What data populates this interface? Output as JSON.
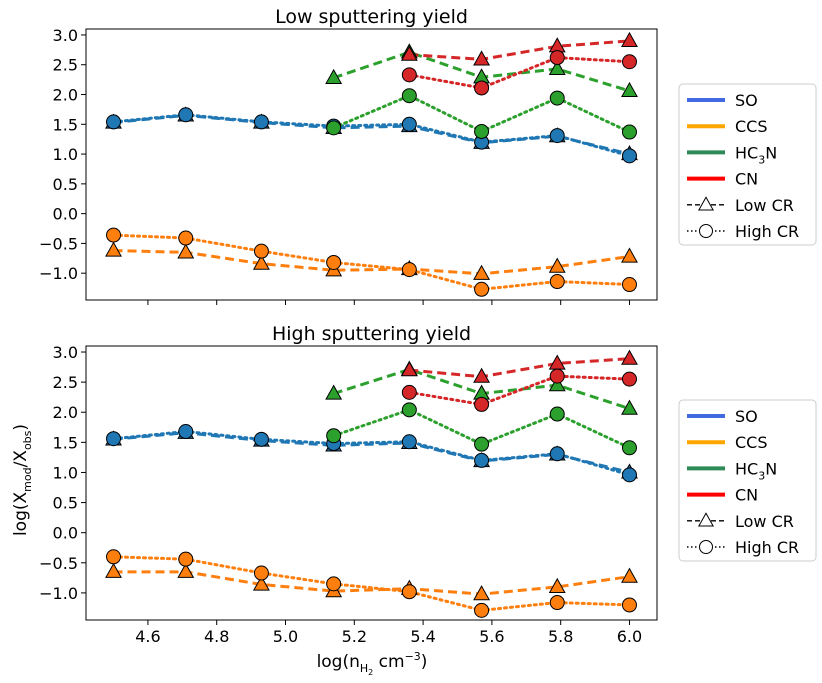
{
  "chart_data": [
    {
      "type": "line",
      "title": "Low sputtering yield",
      "xlabel": "",
      "ylabel": "",
      "xlim": [
        4.42,
        6.08
      ],
      "ylim": [
        -1.45,
        3.1
      ],
      "xticks": [
        4.6,
        4.8,
        5.0,
        5.2,
        5.4,
        5.6,
        5.8,
        6.0
      ],
      "xtick_labels_shown": false,
      "yticks": [
        "3.0",
        "2.5",
        "2.0",
        "1.5",
        "1.0",
        "0.5",
        "0.0",
        "−0.5",
        "−1.0"
      ],
      "x": [
        4.5,
        4.71,
        4.93,
        5.14,
        5.36,
        5.57,
        5.79,
        6.0
      ],
      "series": [
        {
          "molecule": "SO",
          "cr": "Low CR",
          "color": "#1f77b4",
          "values": [
            1.53,
            1.65,
            1.53,
            1.44,
            1.47,
            1.19,
            1.3,
            1.0
          ]
        },
        {
          "molecule": "SO",
          "cr": "High CR",
          "color": "#1f77b4",
          "values": [
            1.54,
            1.66,
            1.54,
            1.47,
            1.5,
            1.2,
            1.31,
            0.97
          ]
        },
        {
          "molecule": "CCS",
          "cr": "Low CR",
          "color": "#ff7f0e",
          "values": [
            -0.62,
            -0.65,
            -0.84,
            -0.95,
            -0.93,
            -1.01,
            -0.89,
            -0.72
          ]
        },
        {
          "molecule": "CCS",
          "cr": "High CR",
          "color": "#ff7f0e",
          "values": [
            -0.36,
            -0.41,
            -0.63,
            -0.82,
            -0.94,
            -1.27,
            -1.14,
            -1.19
          ]
        },
        {
          "molecule": "HC3N",
          "cr": "Low CR",
          "color": "#2ca02c",
          "x": [
            5.14,
            5.36,
            5.57,
            5.79,
            6.0
          ],
          "values": [
            2.28,
            2.71,
            2.29,
            2.43,
            2.06
          ]
        },
        {
          "molecule": "HC3N",
          "cr": "High CR",
          "color": "#2ca02c",
          "x": [
            5.14,
            5.36,
            5.57,
            5.79,
            6.0
          ],
          "values": [
            1.44,
            1.98,
            1.38,
            1.94,
            1.37
          ]
        },
        {
          "molecule": "CN",
          "cr": "Low CR",
          "color": "#d62728",
          "x": [
            5.36,
            5.57,
            5.79,
            6.0
          ],
          "values": [
            2.67,
            2.59,
            2.81,
            2.9
          ]
        },
        {
          "molecule": "CN",
          "cr": "High CR",
          "color": "#d62728",
          "x": [
            5.36,
            5.57,
            5.79,
            6.0
          ],
          "values": [
            2.33,
            2.11,
            2.62,
            2.55
          ]
        }
      ]
    },
    {
      "type": "line",
      "title": "High sputtering yield",
      "xlabel": "log(n",
      "ylabel": "log(X",
      "xlim": [
        4.42,
        6.08
      ],
      "ylim": [
        -1.45,
        3.1
      ],
      "xticks": [
        4.6,
        4.8,
        5.0,
        5.2,
        5.4,
        5.6,
        5.8,
        6.0
      ],
      "xtick_labels": [
        "4.6",
        "4.8",
        "5.0",
        "5.2",
        "5.4",
        "5.6",
        "5.8",
        "6.0"
      ],
      "yticks": [
        "3.0",
        "2.5",
        "2.0",
        "1.5",
        "1.0",
        "0.5",
        "0.0",
        "−0.5",
        "−1.0"
      ],
      "x": [
        4.5,
        4.71,
        4.93,
        5.14,
        5.36,
        5.57,
        5.79,
        6.0
      ],
      "series": [
        {
          "molecule": "SO",
          "cr": "Low CR",
          "color": "#1f77b4",
          "values": [
            1.55,
            1.66,
            1.53,
            1.45,
            1.49,
            1.19,
            1.3,
            1.0
          ]
        },
        {
          "molecule": "SO",
          "cr": "High CR",
          "color": "#1f77b4",
          "values": [
            1.56,
            1.68,
            1.55,
            1.48,
            1.51,
            1.2,
            1.31,
            0.96
          ]
        },
        {
          "molecule": "CCS",
          "cr": "Low CR",
          "color": "#ff7f0e",
          "values": [
            -0.65,
            -0.65,
            -0.86,
            -0.97,
            -0.93,
            -1.02,
            -0.9,
            -0.73
          ]
        },
        {
          "molecule": "CCS",
          "cr": "High CR",
          "color": "#ff7f0e",
          "values": [
            -0.4,
            -0.44,
            -0.67,
            -0.85,
            -0.98,
            -1.29,
            -1.16,
            -1.2
          ]
        },
        {
          "molecule": "HC3N",
          "cr": "Low CR",
          "color": "#2ca02c",
          "x": [
            5.14,
            5.36,
            5.57,
            5.79,
            6.0
          ],
          "values": [
            2.31,
            2.71,
            2.31,
            2.45,
            2.06
          ]
        },
        {
          "molecule": "HC3N",
          "cr": "High CR",
          "color": "#2ca02c",
          "x": [
            5.14,
            5.36,
            5.57,
            5.79,
            6.0
          ],
          "values": [
            1.61,
            2.04,
            1.47,
            1.97,
            1.41
          ]
        },
        {
          "molecule": "CN",
          "cr": "Low CR",
          "color": "#d62728",
          "x": [
            5.36,
            5.57,
            5.79,
            6.0
          ],
          "values": [
            2.7,
            2.59,
            2.81,
            2.89
          ]
        },
        {
          "molecule": "CN",
          "cr": "High CR",
          "color": "#d62728",
          "x": [
            5.36,
            5.57,
            5.79,
            6.0
          ],
          "values": [
            2.33,
            2.13,
            2.6,
            2.55
          ]
        }
      ]
    }
  ],
  "legend": {
    "placement": "right",
    "entries": [
      {
        "label": "SO",
        "color": "#4169e1",
        "kind": "line"
      },
      {
        "label": "CCS",
        "color": "#ffa500",
        "kind": "line"
      },
      {
        "label": "HC",
        "sub": "3",
        "tail": "N",
        "color": "#2e8b57",
        "kind": "line"
      },
      {
        "label": "CN",
        "color": "#ff0000",
        "kind": "line"
      },
      {
        "label": "Low CR",
        "kind": "dashed-triangle"
      },
      {
        "label": "High CR",
        "kind": "dotted-circle"
      }
    ]
  },
  "labels": {
    "xlabel_main": "log(n",
    "xlabel_sub": "H",
    "xlabel_subsub": "2",
    "xlabel_unit": " cm",
    "xlabel_sup": "−3",
    "xlabel_close": ")",
    "ylabel_main": "log(X",
    "ylabel_sub1": "mod",
    "ylabel_mid": "/X",
    "ylabel_sub2": "obs",
    "ylabel_close": ")"
  }
}
